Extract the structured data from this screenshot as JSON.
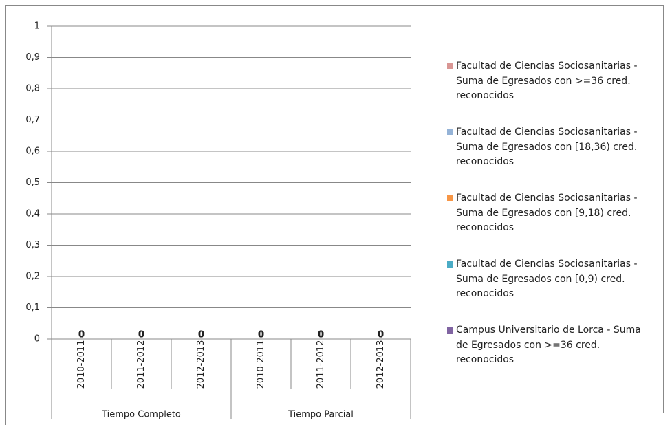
{
  "chart_data": {
    "type": "bar",
    "categories": [
      "2010-2011",
      "2011-2012",
      "2012-2013",
      "2010-2011",
      "2011-2012",
      "2012-2013"
    ],
    "category_groups": [
      "Tiempo Completo",
      "Tiempo Parcial"
    ],
    "series": [
      {
        "name": "Facultad de Ciencias Sociosanitarias - Suma de Egresados con >=36 cred. reconocidos",
        "color": "#d99694",
        "values": [
          0,
          0,
          0,
          0,
          0,
          0
        ]
      },
      {
        "name": "Facultad de Ciencias Sociosanitarias - Suma de Egresados con [18,36) cred. reconocidos",
        "color": "#95b3d7",
        "values": [
          0,
          0,
          0,
          0,
          0,
          0
        ]
      },
      {
        "name": "Facultad de Ciencias Sociosanitarias - Suma de Egresados con [9,18) cred. reconocidos",
        "color": "#f79646",
        "values": [
          0,
          0,
          0,
          0,
          0,
          0
        ]
      },
      {
        "name": "Facultad de Ciencias Sociosanitarias - Suma de Egresados con [0,9) cred. reconocidos",
        "color": "#4bacc6",
        "values": [
          0,
          0,
          0,
          0,
          0,
          0
        ]
      },
      {
        "name": "Campus Universitario de Lorca - Suma de Egresados con >=36 cred. reconocidos",
        "color": "#8064a2",
        "values": [
          0,
          0,
          0,
          0,
          0,
          0
        ]
      }
    ],
    "ylim": [
      0,
      1
    ],
    "yticks": [
      0,
      {
        "value": 0.1,
        "label": "0,1"
      },
      {
        "value": 0.2,
        "label": "0,2"
      },
      {
        "value": 0.3,
        "label": "0,3"
      },
      {
        "value": 0.4,
        "label": "0,4"
      },
      {
        "value": 0.5,
        "label": "0,5"
      },
      {
        "value": 0.6,
        "label": "0,6"
      },
      {
        "value": 0.7,
        "label": "0,7"
      },
      {
        "value": 0.8,
        "label": "0,8"
      },
      {
        "value": 0.9,
        "label": "0,9"
      },
      1
    ],
    "grid": true,
    "legend": "right"
  }
}
